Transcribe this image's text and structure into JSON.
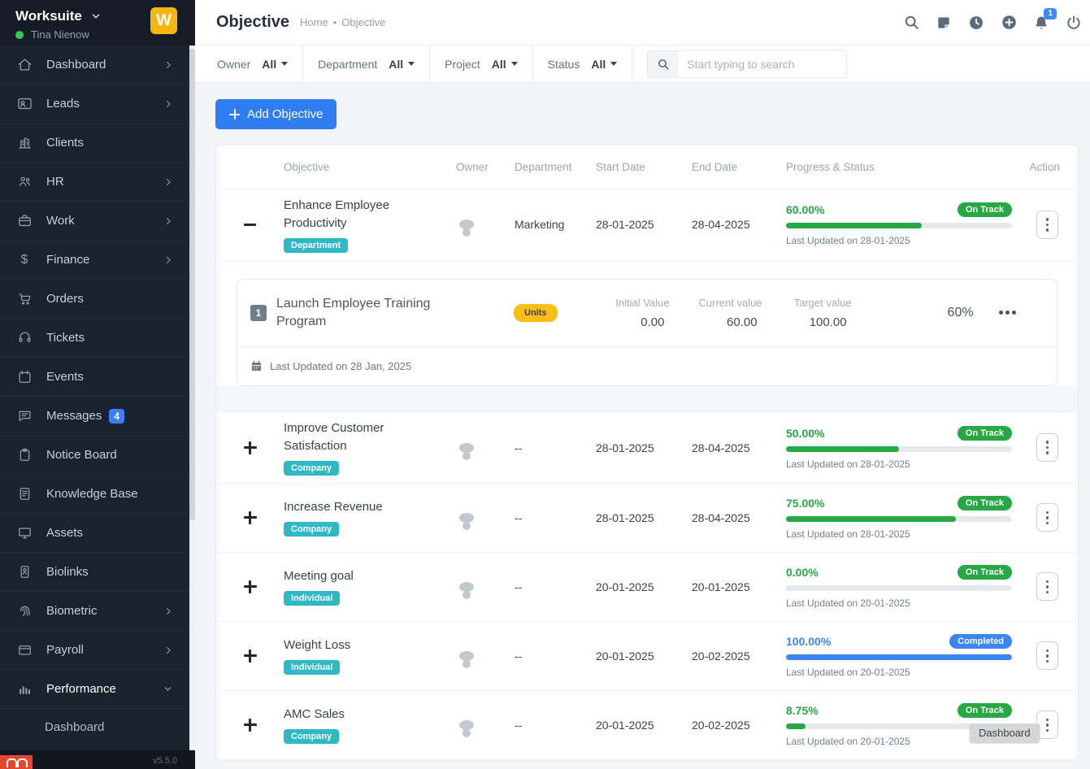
{
  "colors": {
    "sidebar_bg": "#1a222e",
    "accent_blue": "#2e7df4",
    "progress_green": "#28a745",
    "completed_blue": "#3d85f6",
    "type_badge_teal": "#2fb8c6",
    "unit_badge_yellow": "#fcbe12",
    "logo_yellow": "#f5b612",
    "online_green": "#2ecc52"
  },
  "sidebar": {
    "brand": "Worksuite",
    "user_name": "Tina Nienow",
    "logo_letter": "W",
    "version": "v5.5.0",
    "items": [
      {
        "label": "Dashboard",
        "icon": "home-icon",
        "chevron": "right"
      },
      {
        "label": "Leads",
        "icon": "leads-icon",
        "chevron": "right"
      },
      {
        "label": "Clients",
        "icon": "building-icon"
      },
      {
        "label": "HR",
        "icon": "people-icon",
        "chevron": "right"
      },
      {
        "label": "Work",
        "icon": "briefcase-icon",
        "chevron": "right"
      },
      {
        "label": "Finance",
        "icon": "dollar-icon",
        "chevron": "right"
      },
      {
        "label": "Orders",
        "icon": "cart-icon"
      },
      {
        "label": "Tickets",
        "icon": "headset-icon"
      },
      {
        "label": "Events",
        "icon": "calendar-icon"
      },
      {
        "label": "Messages",
        "icon": "chat-icon",
        "badge": "4"
      },
      {
        "label": "Notice Board",
        "icon": "clipboard-icon"
      },
      {
        "label": "Knowledge Base",
        "icon": "document-icon"
      },
      {
        "label": "Assets",
        "icon": "monitor-icon"
      },
      {
        "label": "Biolinks",
        "icon": "id-card-icon"
      },
      {
        "label": "Biometric",
        "icon": "fingerprint-icon",
        "chevron": "right"
      },
      {
        "label": "Payroll",
        "icon": "wallet-icon",
        "chevron": "right"
      },
      {
        "label": "Performance",
        "icon": "bar-chart-icon",
        "chevron": "down",
        "active": true
      }
    ],
    "sub_items": [
      {
        "label": "Dashboard"
      }
    ]
  },
  "topbar": {
    "title": "Objective",
    "breadcrumb": {
      "home": "Home",
      "separator": "•",
      "current": "Objective"
    },
    "notification_count": "1"
  },
  "filterbar": {
    "filters": [
      {
        "label": "Owner",
        "value": "All"
      },
      {
        "label": "Department",
        "value": "All"
      },
      {
        "label": "Project",
        "value": "All"
      },
      {
        "label": "Status",
        "value": "All"
      }
    ],
    "search_placeholder": "Start typing to search"
  },
  "content": {
    "add_button_label": "Add Objective",
    "table": {
      "columns": [
        "Objective",
        "Owner",
        "Department",
        "Start Date",
        "End Date",
        "Progress & Status",
        "Action"
      ],
      "rows": [
        {
          "title": "Enhance Employee Productivity",
          "type_badge": "Department",
          "department": "Marketing",
          "start_date": "28-01-2025",
          "end_date": "28-04-2025",
          "progress": "60.00%",
          "progress_width": "60%",
          "status": "On Track",
          "last_updated": "Last Updated on 28-01-2025",
          "expanded": true
        },
        {
          "title": "Improve Customer Satisfaction",
          "type_badge": "Company",
          "department": "--",
          "start_date": "28-01-2025",
          "end_date": "28-04-2025",
          "progress": "50.00%",
          "progress_width": "50%",
          "status": "On Track",
          "last_updated": "Last Updated on 28-01-2025",
          "expanded": false
        },
        {
          "title": "Increase Revenue",
          "type_badge": "Company",
          "department": "--",
          "start_date": "28-01-2025",
          "end_date": "28-04-2025",
          "progress": "75.00%",
          "progress_width": "75%",
          "status": "On Track",
          "last_updated": "Last Updated on 28-01-2025",
          "expanded": false
        },
        {
          "title": "Meeting goal",
          "type_badge": "Individual",
          "department": "--",
          "start_date": "20-01-2025",
          "end_date": "20-01-2025",
          "progress": "0.00%",
          "progress_width": "0%",
          "status": "On Track",
          "last_updated": "Last Updated on 20-01-2025",
          "expanded": false
        },
        {
          "title": "Weight Loss",
          "type_badge": "Individual",
          "department": "--",
          "start_date": "20-01-2025",
          "end_date": "20-02-2025",
          "progress": "100.00%",
          "progress_width": "100%",
          "status": "Completed",
          "last_updated": "Last Updated on 20-01-2025",
          "expanded": false
        },
        {
          "title": "AMC Sales",
          "type_badge": "Company",
          "department": "--",
          "start_date": "20-01-2025",
          "end_date": "20-02-2025",
          "progress": "8.75%",
          "progress_width": "8.75%",
          "status": "On Track",
          "last_updated": "Last Updated on 20-01-2025",
          "expanded": false
        }
      ]
    },
    "key_result": {
      "number": "1",
      "title": "Launch Employee Training Program",
      "unit_badge": "Units",
      "initial_label": "Initial Value",
      "initial_value": "0.00",
      "current_label": "Current value",
      "current_value": "60.00",
      "target_label": "Target value",
      "target_value": "100.00",
      "percent": "60%",
      "last_updated": "Last Updated on 28 Jan, 2025"
    }
  },
  "tooltip": "Dashboard"
}
